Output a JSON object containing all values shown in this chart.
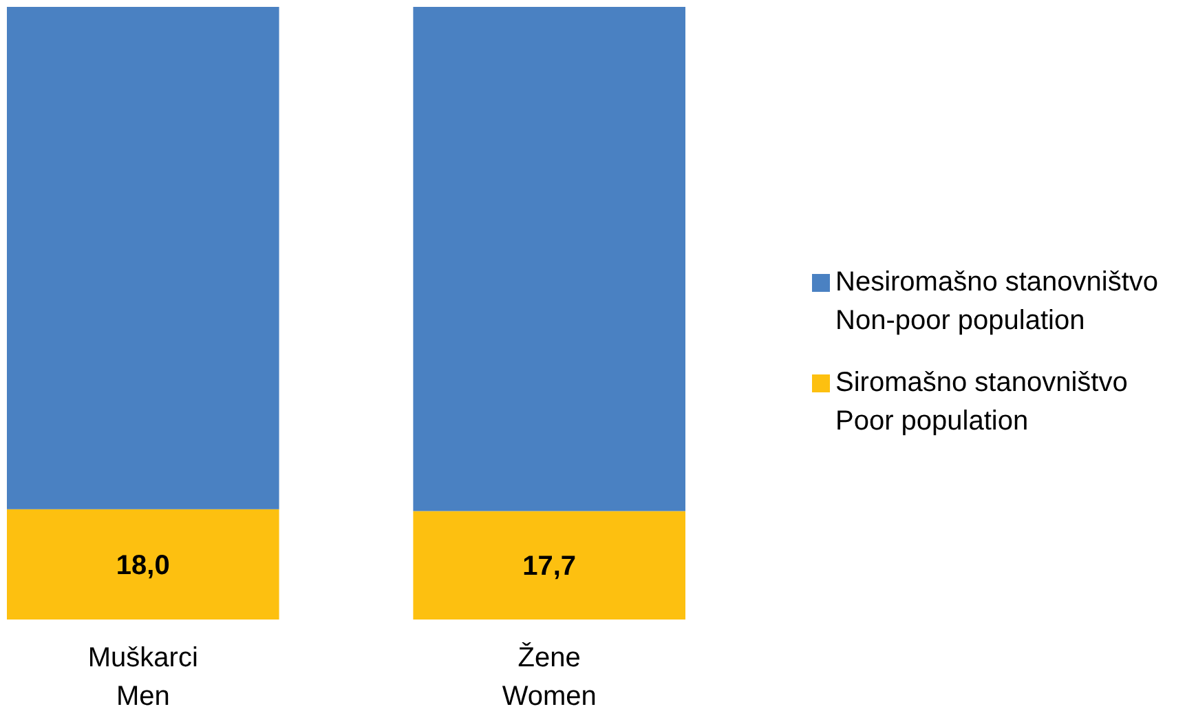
{
  "chart_data": {
    "type": "bar",
    "stacked": true,
    "categories": [
      "Muškarci\nMen",
      "Žene\nWomen"
    ],
    "legend": "right",
    "series": [
      {
        "name": "Siromašno stanovništvo\nPoor population",
        "color": "#fdc010",
        "values": [
          18.0,
          17.7
        ],
        "value_labels": [
          "18,0",
          "17,7"
        ]
      },
      {
        "name": "Nesiromašno stanovništvo\nNon-poor population",
        "color": "#4a81c2",
        "values": [
          82.0,
          82.3
        ]
      }
    ]
  }
}
